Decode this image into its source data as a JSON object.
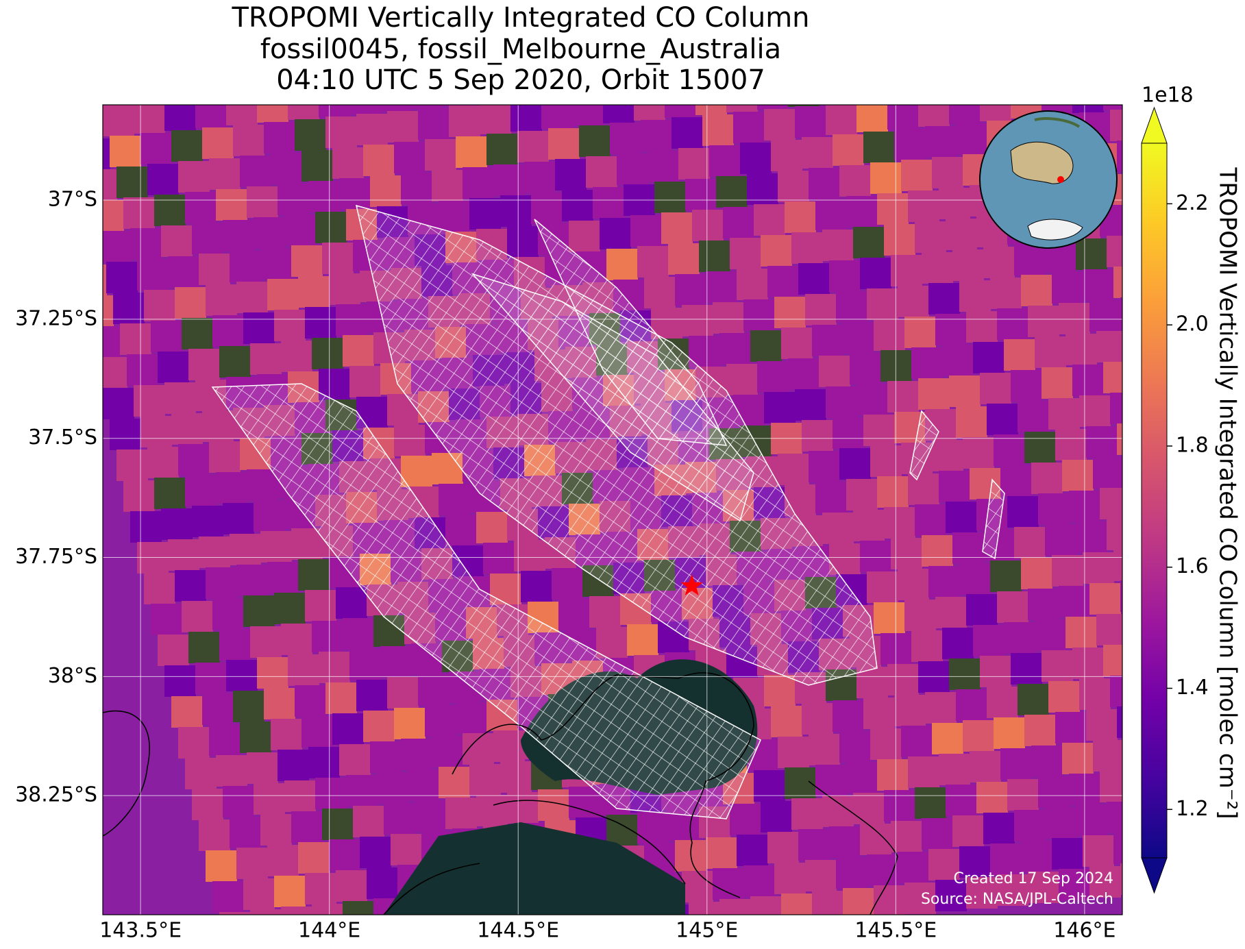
{
  "chart_data": {
    "type": "map",
    "title": [
      "TROPOMI Vertically Integrated CO Column",
      "fossil0045, fossil_Melbourne_Australia",
      "04:10 UTC 5 Sep 2020, Orbit 15007"
    ],
    "xlim": [
      143.4,
      146.1
    ],
    "ylim": [
      -38.5,
      -36.8
    ],
    "xticks": [
      {
        "value": 143.5,
        "label": "143.5°E"
      },
      {
        "value": 144,
        "label": "144°E"
      },
      {
        "value": 144.5,
        "label": "144.5°E"
      },
      {
        "value": 145,
        "label": "145°E"
      },
      {
        "value": 145.5,
        "label": "145.5°E"
      },
      {
        "value": 146,
        "label": "146°E"
      }
    ],
    "yticks": [
      {
        "value": -37,
        "label": "37°S"
      },
      {
        "value": -37.25,
        "label": "37.25°S"
      },
      {
        "value": -37.5,
        "label": "37.5°S"
      },
      {
        "value": -37.75,
        "label": "37.75°S"
      },
      {
        "value": -38,
        "label": "38°S"
      },
      {
        "value": -38.25,
        "label": "38.25°S"
      }
    ],
    "grid": true,
    "site": {
      "lon": 144.96,
      "lat": -37.81,
      "color": "#ff0000"
    },
    "colorbar": {
      "label": "TROPOMI Vertically Integrated CO Column [molec cm⁻²]",
      "exponent": "1e18",
      "colormap": "plasma",
      "clim": [
        1.12,
        2.3
      ],
      "ticks": [
        1.2,
        1.4,
        1.6,
        1.8,
        {
          "value": 2,
          "label": "2.0"
        },
        2.2
      ]
    },
    "credits": [
      "Created 17 Sep 2024",
      "Source: NASA/JPL-Caltech"
    ]
  }
}
